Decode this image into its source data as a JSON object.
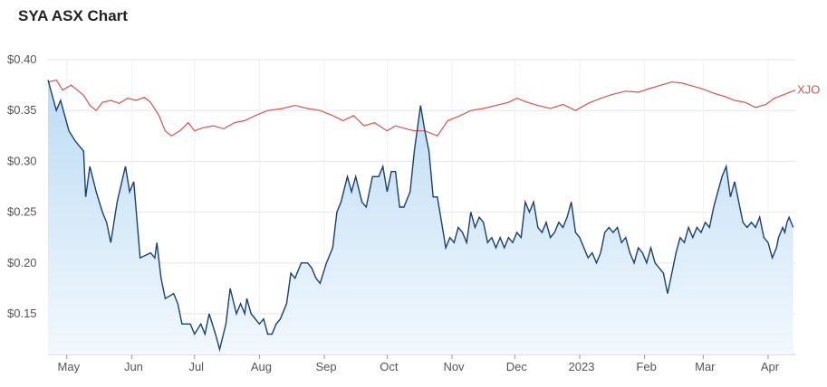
{
  "chart_data": {
    "type": "line",
    "title": "SYA ASX Chart",
    "ylim": [
      0.11,
      0.4
    ],
    "y_ticks": [
      {
        "value": 0.4,
        "label": "$0.40"
      },
      {
        "value": 0.35,
        "label": "$0.35"
      },
      {
        "value": 0.3,
        "label": "$0.30"
      },
      {
        "value": 0.25,
        "label": "$0.25"
      },
      {
        "value": 0.2,
        "label": "$0.20"
      },
      {
        "value": 0.15,
        "label": "$0.15"
      }
    ],
    "x_range": [
      "2022-04-22",
      "2023-04-14"
    ],
    "x_ticks": [
      {
        "date": "2022-05-01",
        "label": "May"
      },
      {
        "date": "2022-06-01",
        "label": "Jun"
      },
      {
        "date": "2022-07-01",
        "label": "Jul"
      },
      {
        "date": "2022-08-01",
        "label": "Aug"
      },
      {
        "date": "2022-09-01",
        "label": "Sep"
      },
      {
        "date": "2022-10-01",
        "label": "Oct"
      },
      {
        "date": "2022-11-01",
        "label": "Nov"
      },
      {
        "date": "2022-12-01",
        "label": "Dec"
      },
      {
        "date": "2023-01-01",
        "label": "2023"
      },
      {
        "date": "2023-02-01",
        "label": "Feb"
      },
      {
        "date": "2023-03-01",
        "label": "Mar"
      },
      {
        "date": "2023-04-01",
        "label": "Apr"
      }
    ],
    "grid": true,
    "colors": {
      "sya": "#1b3f6e",
      "xjo": "#d9534f",
      "fill_top": "#bcdcf4",
      "fill_bottom": "#f2f8fd",
      "grid": "#e6e6e6"
    },
    "series": [
      {
        "name": "SYA",
        "points": [
          [
            "2022-04-22",
            0.38
          ],
          [
            "2022-04-26",
            0.35
          ],
          [
            "2022-04-28",
            0.36
          ],
          [
            "2022-05-02",
            0.33
          ],
          [
            "2022-05-05",
            0.32
          ],
          [
            "2022-05-09",
            0.31
          ],
          [
            "2022-05-10",
            0.265
          ],
          [
            "2022-05-12",
            0.295
          ],
          [
            "2022-05-15",
            0.27
          ],
          [
            "2022-05-18",
            0.25
          ],
          [
            "2022-05-20",
            0.24
          ],
          [
            "2022-05-22",
            0.22
          ],
          [
            "2022-05-25",
            0.26
          ],
          [
            "2022-05-29",
            0.295
          ],
          [
            "2022-05-31",
            0.27
          ],
          [
            "2022-06-02",
            0.28
          ],
          [
            "2022-06-05",
            0.205
          ],
          [
            "2022-06-10",
            0.21
          ],
          [
            "2022-06-12",
            0.205
          ],
          [
            "2022-06-13",
            0.22
          ],
          [
            "2022-06-15",
            0.185
          ],
          [
            "2022-06-17",
            0.165
          ],
          [
            "2022-06-21",
            0.17
          ],
          [
            "2022-06-23",
            0.16
          ],
          [
            "2022-06-25",
            0.14
          ],
          [
            "2022-06-29",
            0.14
          ],
          [
            "2022-07-01",
            0.13
          ],
          [
            "2022-07-04",
            0.14
          ],
          [
            "2022-07-06",
            0.13
          ],
          [
            "2022-07-08",
            0.15
          ],
          [
            "2022-07-11",
            0.13
          ],
          [
            "2022-07-13",
            0.115
          ],
          [
            "2022-07-16",
            0.14
          ],
          [
            "2022-07-18",
            0.175
          ],
          [
            "2022-07-21",
            0.15
          ],
          [
            "2022-07-23",
            0.16
          ],
          [
            "2022-07-25",
            0.15
          ],
          [
            "2022-07-26",
            0.165
          ],
          [
            "2022-07-28",
            0.15
          ],
          [
            "2022-08-01",
            0.14
          ],
          [
            "2022-08-03",
            0.145
          ],
          [
            "2022-08-05",
            0.13
          ],
          [
            "2022-08-07",
            0.13
          ],
          [
            "2022-08-09",
            0.14
          ],
          [
            "2022-08-11",
            0.145
          ],
          [
            "2022-08-14",
            0.16
          ],
          [
            "2022-08-16",
            0.19
          ],
          [
            "2022-08-18",
            0.185
          ],
          [
            "2022-08-21",
            0.2
          ],
          [
            "2022-08-24",
            0.2
          ],
          [
            "2022-08-26",
            0.195
          ],
          [
            "2022-08-28",
            0.185
          ],
          [
            "2022-08-30",
            0.18
          ],
          [
            "2022-09-02",
            0.2
          ],
          [
            "2022-09-05",
            0.215
          ],
          [
            "2022-09-07",
            0.25
          ],
          [
            "2022-09-09",
            0.26
          ],
          [
            "2022-09-12",
            0.285
          ],
          [
            "2022-09-14",
            0.27
          ],
          [
            "2022-09-16",
            0.285
          ],
          [
            "2022-09-19",
            0.26
          ],
          [
            "2022-09-21",
            0.255
          ],
          [
            "2022-09-24",
            0.285
          ],
          [
            "2022-09-27",
            0.285
          ],
          [
            "2022-09-29",
            0.295
          ],
          [
            "2022-10-01",
            0.27
          ],
          [
            "2022-10-03",
            0.29
          ],
          [
            "2022-10-05",
            0.29
          ],
          [
            "2022-10-07",
            0.255
          ],
          [
            "2022-10-09",
            0.255
          ],
          [
            "2022-10-12",
            0.27
          ],
          [
            "2022-10-14",
            0.31
          ],
          [
            "2022-10-17",
            0.355
          ],
          [
            "2022-10-19",
            0.33
          ],
          [
            "2022-10-21",
            0.31
          ],
          [
            "2022-10-23",
            0.265
          ],
          [
            "2022-10-25",
            0.265
          ],
          [
            "2022-10-27",
            0.24
          ],
          [
            "2022-10-29",
            0.215
          ],
          [
            "2022-10-31",
            0.225
          ],
          [
            "2022-11-02",
            0.22
          ],
          [
            "2022-11-04",
            0.235
          ],
          [
            "2022-11-06",
            0.23
          ],
          [
            "2022-11-08",
            0.22
          ],
          [
            "2022-11-10",
            0.25
          ],
          [
            "2022-11-12",
            0.235
          ],
          [
            "2022-11-14",
            0.245
          ],
          [
            "2022-11-16",
            0.24
          ],
          [
            "2022-11-18",
            0.22
          ],
          [
            "2022-11-20",
            0.225
          ],
          [
            "2022-11-22",
            0.215
          ],
          [
            "2022-11-24",
            0.225
          ],
          [
            "2022-11-26",
            0.215
          ],
          [
            "2022-11-28",
            0.225
          ],
          [
            "2022-11-30",
            0.22
          ],
          [
            "2022-12-02",
            0.23
          ],
          [
            "2022-12-04",
            0.225
          ],
          [
            "2022-12-06",
            0.26
          ],
          [
            "2022-12-08",
            0.25
          ],
          [
            "2022-12-10",
            0.26
          ],
          [
            "2022-12-12",
            0.235
          ],
          [
            "2022-12-14",
            0.23
          ],
          [
            "2022-12-16",
            0.24
          ],
          [
            "2022-12-18",
            0.225
          ],
          [
            "2022-12-20",
            0.23
          ],
          [
            "2022-12-22",
            0.24
          ],
          [
            "2022-12-24",
            0.235
          ],
          [
            "2022-12-26",
            0.245
          ],
          [
            "2022-12-28",
            0.26
          ],
          [
            "2022-12-30",
            0.23
          ],
          [
            "2023-01-01",
            0.225
          ],
          [
            "2023-01-03",
            0.215
          ],
          [
            "2023-01-05",
            0.205
          ],
          [
            "2023-01-07",
            0.21
          ],
          [
            "2023-01-09",
            0.2
          ],
          [
            "2023-01-11",
            0.21
          ],
          [
            "2023-01-13",
            0.23
          ],
          [
            "2023-01-15",
            0.235
          ],
          [
            "2023-01-17",
            0.23
          ],
          [
            "2023-01-19",
            0.235
          ],
          [
            "2023-01-21",
            0.22
          ],
          [
            "2023-01-23",
            0.225
          ],
          [
            "2023-01-25",
            0.21
          ],
          [
            "2023-01-27",
            0.2
          ],
          [
            "2023-01-29",
            0.215
          ],
          [
            "2023-01-31",
            0.21
          ],
          [
            "2023-02-02",
            0.2
          ],
          [
            "2023-02-04",
            0.215
          ],
          [
            "2023-02-06",
            0.2
          ],
          [
            "2023-02-08",
            0.195
          ],
          [
            "2023-02-10",
            0.19
          ],
          [
            "2023-02-12",
            0.17
          ],
          [
            "2023-02-14",
            0.19
          ],
          [
            "2023-02-16",
            0.21
          ],
          [
            "2023-02-18",
            0.225
          ],
          [
            "2023-02-20",
            0.22
          ],
          [
            "2023-02-22",
            0.235
          ],
          [
            "2023-02-24",
            0.225
          ],
          [
            "2023-02-26",
            0.235
          ],
          [
            "2023-02-28",
            0.23
          ],
          [
            "2023-03-02",
            0.24
          ],
          [
            "2023-03-04",
            0.235
          ],
          [
            "2023-03-06",
            0.255
          ],
          [
            "2023-03-08",
            0.27
          ],
          [
            "2023-03-10",
            0.285
          ],
          [
            "2023-03-12",
            0.295
          ],
          [
            "2023-03-14",
            0.265
          ],
          [
            "2023-03-16",
            0.28
          ],
          [
            "2023-03-18",
            0.26
          ],
          [
            "2023-03-20",
            0.24
          ],
          [
            "2023-03-22",
            0.235
          ],
          [
            "2023-03-24",
            0.24
          ],
          [
            "2023-03-26",
            0.235
          ],
          [
            "2023-03-28",
            0.245
          ],
          [
            "2023-03-30",
            0.225
          ],
          [
            "2023-04-01",
            0.22
          ],
          [
            "2023-04-03",
            0.205
          ],
          [
            "2023-04-05",
            0.215
          ],
          [
            "2023-04-06",
            0.225
          ],
          [
            "2023-04-07",
            0.23
          ],
          [
            "2023-04-08",
            0.235
          ],
          [
            "2023-04-09",
            0.23
          ],
          [
            "2023-04-10",
            0.24
          ],
          [
            "2023-04-11",
            0.245
          ],
          [
            "2023-04-12",
            0.24
          ],
          [
            "2023-04-13",
            0.235
          ]
        ]
      },
      {
        "name": "XJO",
        "points": [
          [
            "2022-04-22",
            0.378
          ],
          [
            "2022-04-26",
            0.38
          ],
          [
            "2022-04-29",
            0.37
          ],
          [
            "2022-05-03",
            0.375
          ],
          [
            "2022-05-06",
            0.37
          ],
          [
            "2022-05-09",
            0.365
          ],
          [
            "2022-05-12",
            0.355
          ],
          [
            "2022-05-15",
            0.35
          ],
          [
            "2022-05-18",
            0.358
          ],
          [
            "2022-05-22",
            0.36
          ],
          [
            "2022-05-26",
            0.357
          ],
          [
            "2022-05-30",
            0.362
          ],
          [
            "2022-06-03",
            0.36
          ],
          [
            "2022-06-07",
            0.363
          ],
          [
            "2022-06-10",
            0.358
          ],
          [
            "2022-06-14",
            0.345
          ],
          [
            "2022-06-17",
            0.33
          ],
          [
            "2022-06-20",
            0.325
          ],
          [
            "2022-06-24",
            0.33
          ],
          [
            "2022-06-28",
            0.338
          ],
          [
            "2022-07-01",
            0.33
          ],
          [
            "2022-07-05",
            0.333
          ],
          [
            "2022-07-10",
            0.335
          ],
          [
            "2022-07-15",
            0.332
          ],
          [
            "2022-07-20",
            0.338
          ],
          [
            "2022-07-25",
            0.34
          ],
          [
            "2022-07-30",
            0.345
          ],
          [
            "2022-08-05",
            0.35
          ],
          [
            "2022-08-12",
            0.352
          ],
          [
            "2022-08-18",
            0.355
          ],
          [
            "2022-08-24",
            0.352
          ],
          [
            "2022-08-30",
            0.35
          ],
          [
            "2022-09-05",
            0.345
          ],
          [
            "2022-09-10",
            0.34
          ],
          [
            "2022-09-15",
            0.345
          ],
          [
            "2022-09-20",
            0.335
          ],
          [
            "2022-09-25",
            0.338
          ],
          [
            "2022-10-01",
            0.33
          ],
          [
            "2022-10-05",
            0.335
          ],
          [
            "2022-10-10",
            0.332
          ],
          [
            "2022-10-14",
            0.33
          ],
          [
            "2022-10-19",
            0.33
          ],
          [
            "2022-10-25",
            0.325
          ],
          [
            "2022-10-30",
            0.34
          ],
          [
            "2022-11-05",
            0.345
          ],
          [
            "2022-11-10",
            0.35
          ],
          [
            "2022-11-16",
            0.352
          ],
          [
            "2022-11-22",
            0.355
          ],
          [
            "2022-11-28",
            0.358
          ],
          [
            "2022-12-02",
            0.362
          ],
          [
            "2022-12-07",
            0.358
          ],
          [
            "2022-12-12",
            0.355
          ],
          [
            "2022-12-18",
            0.352
          ],
          [
            "2022-12-24",
            0.356
          ],
          [
            "2022-12-30",
            0.35
          ],
          [
            "2023-01-05",
            0.357
          ],
          [
            "2023-01-11",
            0.362
          ],
          [
            "2023-01-17",
            0.366
          ],
          [
            "2023-01-23",
            0.369
          ],
          [
            "2023-01-29",
            0.368
          ],
          [
            "2023-02-04",
            0.372
          ],
          [
            "2023-02-09",
            0.375
          ],
          [
            "2023-02-14",
            0.378
          ],
          [
            "2023-02-19",
            0.377
          ],
          [
            "2023-02-24",
            0.374
          ],
          [
            "2023-03-01",
            0.371
          ],
          [
            "2023-03-06",
            0.367
          ],
          [
            "2023-03-11",
            0.364
          ],
          [
            "2023-03-16",
            0.36
          ],
          [
            "2023-03-21",
            0.358
          ],
          [
            "2023-03-26",
            0.353
          ],
          [
            "2023-03-31",
            0.356
          ],
          [
            "2023-04-04",
            0.362
          ],
          [
            "2023-04-09",
            0.366
          ],
          [
            "2023-04-14",
            0.37
          ]
        ]
      }
    ]
  }
}
